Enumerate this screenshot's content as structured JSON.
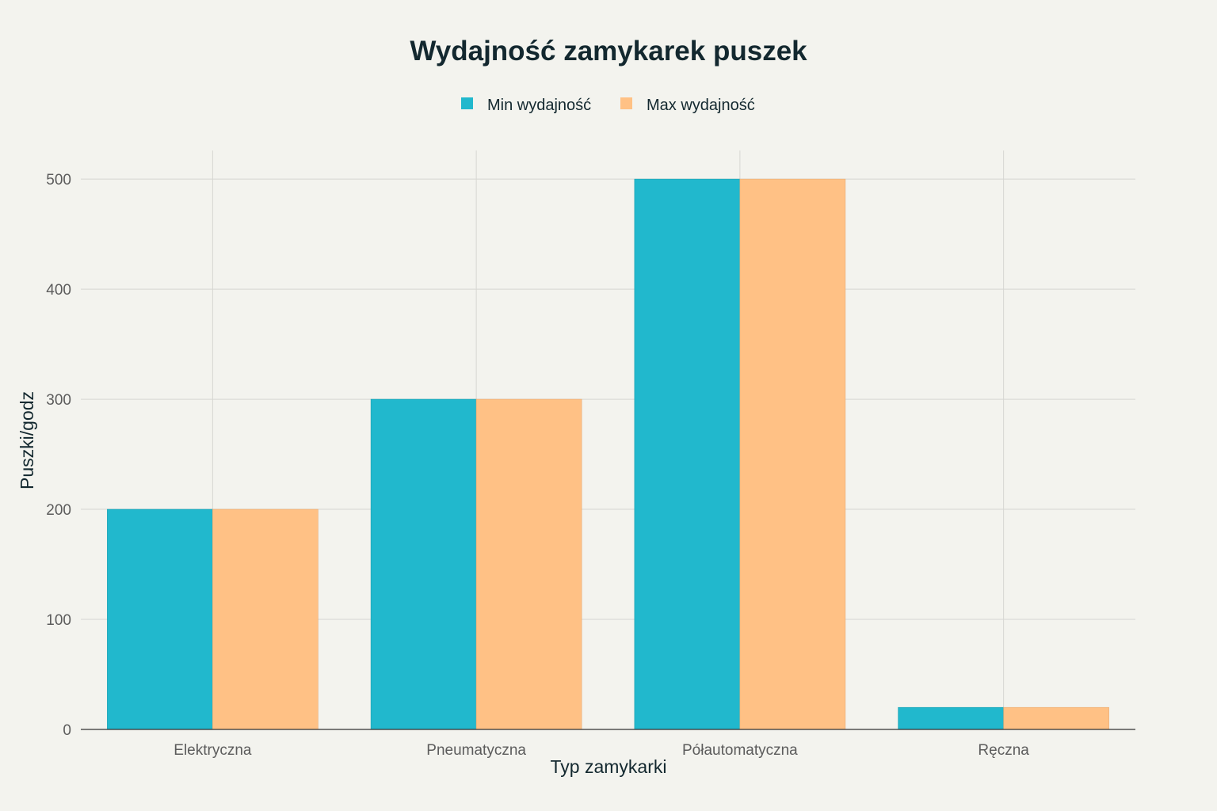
{
  "chart_data": {
    "type": "bar",
    "title": "Wydajność zamykarek puszek",
    "xlabel": "Typ zamykarki",
    "ylabel": "Puszki/godz",
    "categories": [
      "Elektryczna",
      "Pneumatyczna",
      "Półautomatyczna",
      "Ręczna"
    ],
    "series": [
      {
        "name": "Min wydajność",
        "color": "#21b8cd",
        "values": [
          200,
          300,
          500,
          20
        ]
      },
      {
        "name": "Max wydajność",
        "color": "#ffc185",
        "values": [
          200,
          300,
          500,
          20
        ]
      }
    ],
    "yticks": [
      0,
      100,
      200,
      300,
      400,
      500
    ],
    "ylim": [
      0,
      526
    ],
    "grid": true,
    "legend_position": "top-center"
  }
}
